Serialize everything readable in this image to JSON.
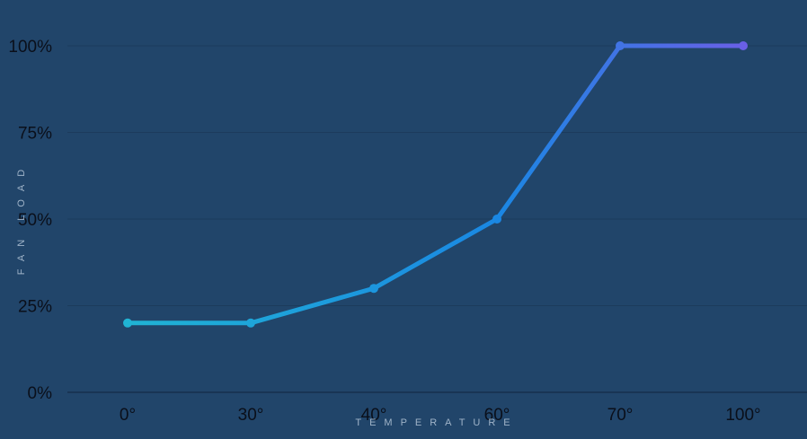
{
  "chart_data": {
    "type": "line",
    "title": "",
    "xlabel": "TEMPERATURE",
    "ylabel": "FAN LOAD",
    "categories": [
      "0°",
      "30°",
      "40°",
      "60°",
      "70°",
      "100°"
    ],
    "series": [
      {
        "values": [
          20,
          20,
          30,
          50,
          100,
          100
        ]
      }
    ],
    "yticks": [
      "0%",
      "25%",
      "50%",
      "75%",
      "100%"
    ],
    "ylim": [
      0,
      100
    ],
    "grid": true,
    "legend": "none",
    "colors": {
      "background": "#21456a",
      "gridline": "#1c3b5c",
      "axis": "#17304c",
      "gradient_start": "#20b4d4",
      "gradient_mid": "#1a87e3",
      "gradient_end": "#6a5fe6",
      "tick_text": "#0a0f1a",
      "axis_title": "#9fb3c8"
    }
  }
}
